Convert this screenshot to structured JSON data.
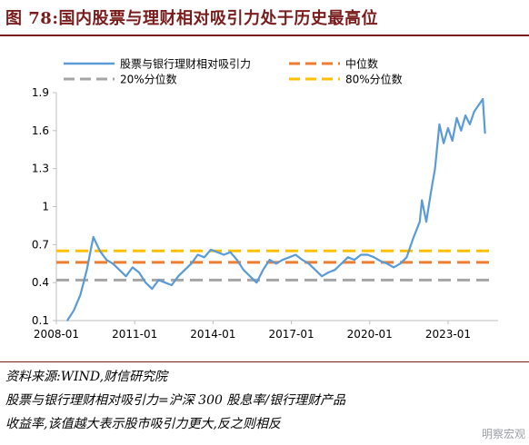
{
  "title": "图 78:国内股票与理财相对吸引力处于历史最高位",
  "notes": {
    "source": "资料来源:WIND,财信研究院",
    "formula": "股票与银行理财相对吸引力=沪深 300 股息率/银行理财产品",
    "explain": "收益率,该值越大表示股市吸引力更大,反之则相反"
  },
  "watermark": "明察宏观",
  "colors": {
    "series": "#5b9bd5",
    "median": "#ed7d31",
    "p20": "#a5a5a5",
    "p80": "#ffc000",
    "axis": "#bfbfbf",
    "title": "#7a1c1c"
  },
  "chart_data": {
    "type": "line",
    "ylim": [
      0.1,
      1.9
    ],
    "yticks": [
      "0.1",
      "0.4",
      "0.7",
      "1",
      "1.3",
      "1.6",
      "1.9"
    ],
    "xticks": [
      "2008-01",
      "2011-01",
      "2014-01",
      "2017-01",
      "2020-01",
      "2023-01"
    ],
    "legend": {
      "series": "股票与银行理财相对吸引力",
      "median": "中位数",
      "p20": "20%分位数",
      "p80": "80%分位数"
    },
    "reference_lines": {
      "median": 0.56,
      "p20": 0.42,
      "p80": 0.65
    },
    "series": [
      {
        "name": "股票与银行理财相对吸引力",
        "x": [
          "2008-06",
          "2008-09",
          "2008-12",
          "2009-03",
          "2009-06",
          "2009-09",
          "2009-12",
          "2010-03",
          "2010-06",
          "2010-09",
          "2010-12",
          "2011-03",
          "2011-06",
          "2011-09",
          "2011-12",
          "2012-03",
          "2012-06",
          "2012-09",
          "2012-12",
          "2013-03",
          "2013-06",
          "2013-09",
          "2013-12",
          "2014-03",
          "2014-06",
          "2014-09",
          "2014-12",
          "2015-03",
          "2015-06",
          "2015-09",
          "2015-12",
          "2016-03",
          "2016-06",
          "2016-09",
          "2016-12",
          "2017-03",
          "2017-06",
          "2017-09",
          "2017-12",
          "2018-03",
          "2018-06",
          "2018-09",
          "2018-12",
          "2019-03",
          "2019-06",
          "2019-09",
          "2019-12",
          "2020-03",
          "2020-06",
          "2020-09",
          "2020-12",
          "2021-03",
          "2021-06",
          "2021-09",
          "2021-12",
          "2022-01",
          "2022-03",
          "2022-05",
          "2022-07",
          "2022-09",
          "2022-11",
          "2023-01",
          "2023-03",
          "2023-05",
          "2023-07",
          "2023-09",
          "2023-11",
          "2024-01",
          "2024-03",
          "2024-05",
          "2024-06"
        ],
        "values": [
          0.1,
          0.18,
          0.3,
          0.5,
          0.76,
          0.65,
          0.58,
          0.55,
          0.5,
          0.45,
          0.52,
          0.48,
          0.4,
          0.35,
          0.42,
          0.4,
          0.38,
          0.45,
          0.5,
          0.55,
          0.62,
          0.6,
          0.66,
          0.64,
          0.62,
          0.64,
          0.58,
          0.5,
          0.45,
          0.4,
          0.5,
          0.58,
          0.55,
          0.58,
          0.6,
          0.62,
          0.58,
          0.55,
          0.5,
          0.45,
          0.48,
          0.5,
          0.55,
          0.6,
          0.58,
          0.62,
          0.62,
          0.6,
          0.57,
          0.55,
          0.52,
          0.55,
          0.6,
          0.75,
          0.88,
          1.05,
          0.88,
          1.1,
          1.3,
          1.65,
          1.5,
          1.62,
          1.52,
          1.7,
          1.6,
          1.72,
          1.65,
          1.75,
          1.8,
          1.85,
          1.58
        ]
      }
    ]
  }
}
